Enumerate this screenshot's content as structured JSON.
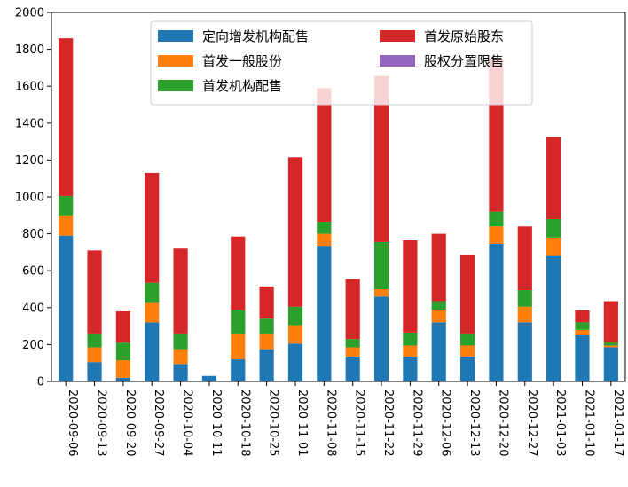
{
  "chart_data": {
    "type": "bar",
    "stacked": true,
    "categories": [
      "2020-09-06",
      "2020-09-13",
      "2020-09-20",
      "2020-09-27",
      "2020-10-04",
      "2020-10-11",
      "2020-10-18",
      "2020-10-25",
      "2020-11-01",
      "2020-11-08",
      "2020-11-15",
      "2020-11-22",
      "2020-11-29",
      "2020-12-06",
      "2020-12-13",
      "2020-12-20",
      "2020-12-27",
      "2021-01-03",
      "2021-01-10",
      "2021-01-17"
    ],
    "series": [
      {
        "name": "定向增发机构配售",
        "color": "#1f77b4",
        "values": [
          790,
          105,
          20,
          320,
          95,
          30,
          120,
          175,
          205,
          735,
          130,
          460,
          130,
          320,
          130,
          745,
          320,
          680,
          250,
          185
        ]
      },
      {
        "name": "首发一般股份",
        "color": "#ff7f0e",
        "values": [
          110,
          80,
          95,
          105,
          80,
          0,
          140,
          85,
          100,
          65,
          55,
          40,
          65,
          65,
          65,
          95,
          85,
          100,
          30,
          10
        ]
      },
      {
        "name": "首发机构配售",
        "color": "#2ca02c",
        "values": [
          105,
          75,
          95,
          110,
          85,
          0,
          125,
          80,
          100,
          65,
          45,
          255,
          70,
          50,
          65,
          80,
          90,
          100,
          40,
          15
        ]
      },
      {
        "name": "首发原始股东",
        "color": "#d62728",
        "values": [
          855,
          450,
          170,
          595,
          460,
          0,
          400,
          175,
          810,
          725,
          325,
          900,
          500,
          365,
          425,
          830,
          345,
          445,
          65,
          225
        ]
      },
      {
        "name": "股权分置限售",
        "color": "#9467bd",
        "values": [
          0,
          0,
          0,
          0,
          0,
          0,
          0,
          0,
          0,
          0,
          0,
          0,
          0,
          0,
          0,
          0,
          0,
          0,
          0,
          0
        ]
      }
    ],
    "ylim": [
      0,
      2000
    ],
    "yticks": [
      "0",
      "200",
      "400",
      "600",
      "800",
      "1000",
      "1200",
      "1400",
      "1600",
      "1800",
      "2000"
    ],
    "grid": false,
    "legend_position": "top-center",
    "legend_columns": 2
  }
}
